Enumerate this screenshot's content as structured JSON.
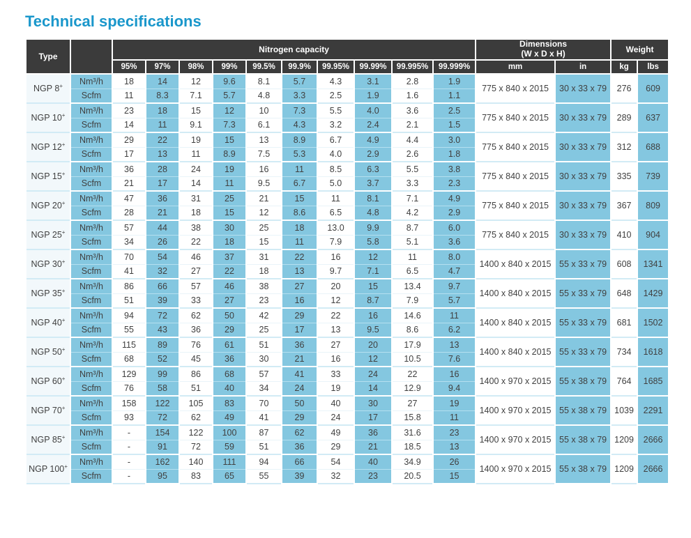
{
  "page_title": "Technical specifications",
  "colors": {
    "title_blue": "#1a97cb",
    "header_dark": "#3b3b3b",
    "header_text": "#ffffff",
    "cell_blue": "#84c7e0",
    "cell_white": "#ffffff",
    "type_column_bg": "#f2f8fb",
    "group_divider": "#d2ebf5",
    "body_text": "#404040"
  },
  "table": {
    "header": {
      "type_label": "Type",
      "capacity_label": "Nitrogen capacity",
      "capacity_columns": [
        "95%",
        "97%",
        "98%",
        "99%",
        "99.5%",
        "99.9%",
        "99.95%",
        "99.99%",
        "99.995%",
        "99.999%"
      ],
      "dimensions_label_line1": "Dimensions",
      "dimensions_label_line2": "(W x D x H)",
      "dimensions_columns": [
        "mm",
        "in"
      ],
      "weight_label": "Weight",
      "weight_columns": [
        "kg",
        "lbs"
      ]
    },
    "unit_labels": [
      "Nm³/h",
      "Scfm"
    ],
    "rows": [
      {
        "type": "NGP 8",
        "sup": "+",
        "nm3h": [
          "18",
          "14",
          "12",
          "9.6",
          "8.1",
          "5.7",
          "4.3",
          "3.1",
          "2.8",
          "1.9"
        ],
        "scfm": [
          "11",
          "8.3",
          "7.1",
          "5.7",
          "4.8",
          "3.3",
          "2.5",
          "1.9",
          "1.6",
          "1.1"
        ],
        "dim_mm": "775 x 840 x 2015",
        "dim_in": "30 x 33 x 79",
        "kg": "276",
        "lbs": "609"
      },
      {
        "type": "NGP 10",
        "sup": "+",
        "nm3h": [
          "23",
          "18",
          "15",
          "12",
          "10",
          "7.3",
          "5.5",
          "4.0",
          "3.6",
          "2.5"
        ],
        "scfm": [
          "14",
          "11",
          "9.1",
          "7.3",
          "6.1",
          "4.3",
          "3.2",
          "2.4",
          "2.1",
          "1.5"
        ],
        "dim_mm": "775 x 840 x 2015",
        "dim_in": "30 x 33 x 79",
        "kg": "289",
        "lbs": "637"
      },
      {
        "type": "NGP 12",
        "sup": "+",
        "nm3h": [
          "29",
          "22",
          "19",
          "15",
          "13",
          "8.9",
          "6.7",
          "4.9",
          "4.4",
          "3.0"
        ],
        "scfm": [
          "17",
          "13",
          "11",
          "8.9",
          "7.5",
          "5.3",
          "4.0",
          "2.9",
          "2.6",
          "1.8"
        ],
        "dim_mm": "775 x 840 x 2015",
        "dim_in": "30 x 33 x 79",
        "kg": "312",
        "lbs": "688"
      },
      {
        "type": "NGP 15",
        "sup": "+",
        "nm3h": [
          "36",
          "28",
          "24",
          "19",
          "16",
          "11",
          "8.5",
          "6.3",
          "5.5",
          "3.8"
        ],
        "scfm": [
          "21",
          "17",
          "14",
          "11",
          "9.5",
          "6.7",
          "5.0",
          "3.7",
          "3.3",
          "2.3"
        ],
        "dim_mm": "775 x 840 x 2015",
        "dim_in": "30 x 33 x 79",
        "kg": "335",
        "lbs": "739"
      },
      {
        "type": "NGP 20",
        "sup": "+",
        "nm3h": [
          "47",
          "36",
          "31",
          "25",
          "21",
          "15",
          "11",
          "8.1",
          "7.1",
          "4.9"
        ],
        "scfm": [
          "28",
          "21",
          "18",
          "15",
          "12",
          "8.6",
          "6.5",
          "4.8",
          "4.2",
          "2.9"
        ],
        "dim_mm": "775 x 840 x 2015",
        "dim_in": "30 x 33 x 79",
        "kg": "367",
        "lbs": "809"
      },
      {
        "type": "NGP 25",
        "sup": "+",
        "nm3h": [
          "57",
          "44",
          "38",
          "30",
          "25",
          "18",
          "13.0",
          "9.9",
          "8.7",
          "6.0"
        ],
        "scfm": [
          "34",
          "26",
          "22",
          "18",
          "15",
          "11",
          "7.9",
          "5.8",
          "5.1",
          "3.6"
        ],
        "dim_mm": "775 x 840 x 2015",
        "dim_in": "30 x 33 x 79",
        "kg": "410",
        "lbs": "904"
      },
      {
        "type": "NGP 30",
        "sup": "+",
        "nm3h": [
          "70",
          "54",
          "46",
          "37",
          "31",
          "22",
          "16",
          "12",
          "11",
          "8.0"
        ],
        "scfm": [
          "41",
          "32",
          "27",
          "22",
          "18",
          "13",
          "9.7",
          "7.1",
          "6.5",
          "4.7"
        ],
        "dim_mm": "1400 x 840 x 2015",
        "dim_in": "55 x 33 x 79",
        "kg": "608",
        "lbs": "1341"
      },
      {
        "type": "NGP 35",
        "sup": "+",
        "nm3h": [
          "86",
          "66",
          "57",
          "46",
          "38",
          "27",
          "20",
          "15",
          "13.4",
          "9.7"
        ],
        "scfm": [
          "51",
          "39",
          "33",
          "27",
          "23",
          "16",
          "12",
          "8.7",
          "7.9",
          "5.7"
        ],
        "dim_mm": "1400 x 840 x 2015",
        "dim_in": "55 x 33 x 79",
        "kg": "648",
        "lbs": "1429"
      },
      {
        "type": "NGP 40",
        "sup": "+",
        "nm3h": [
          "94",
          "72",
          "62",
          "50",
          "42",
          "29",
          "22",
          "16",
          "14.6",
          "11"
        ],
        "scfm": [
          "55",
          "43",
          "36",
          "29",
          "25",
          "17",
          "13",
          "9.5",
          "8.6",
          "6.2"
        ],
        "dim_mm": "1400 x 840 x 2015",
        "dim_in": "55 x 33 x 79",
        "kg": "681",
        "lbs": "1502"
      },
      {
        "type": "NGP 50",
        "sup": "+",
        "nm3h": [
          "115",
          "89",
          "76",
          "61",
          "51",
          "36",
          "27",
          "20",
          "17.9",
          "13"
        ],
        "scfm": [
          "68",
          "52",
          "45",
          "36",
          "30",
          "21",
          "16",
          "12",
          "10.5",
          "7.6"
        ],
        "dim_mm": "1400 x 840 x 2015",
        "dim_in": "55 x 33 x 79",
        "kg": "734",
        "lbs": "1618"
      },
      {
        "type": "NGP 60",
        "sup": "+",
        "nm3h": [
          "129",
          "99",
          "86",
          "68",
          "57",
          "41",
          "33",
          "24",
          "22",
          "16"
        ],
        "scfm": [
          "76",
          "58",
          "51",
          "40",
          "34",
          "24",
          "19",
          "14",
          "12.9",
          "9.4"
        ],
        "dim_mm": "1400 x 970 x 2015",
        "dim_in": "55 x 38 x 79",
        "kg": "764",
        "lbs": "1685"
      },
      {
        "type": "NGP 70",
        "sup": "+",
        "nm3h": [
          "158",
          "122",
          "105",
          "83",
          "70",
          "50",
          "40",
          "30",
          "27",
          "19"
        ],
        "scfm": [
          "93",
          "72",
          "62",
          "49",
          "41",
          "29",
          "24",
          "17",
          "15.8",
          "11"
        ],
        "dim_mm": "1400 x 970 x 2015",
        "dim_in": "55 x 38 x 79",
        "kg": "1039",
        "lbs": "2291"
      },
      {
        "type": "NGP 85",
        "sup": "+",
        "nm3h": [
          "-",
          "154",
          "122",
          "100",
          "87",
          "62",
          "49",
          "36",
          "31.6",
          "23"
        ],
        "scfm": [
          "-",
          "91",
          "72",
          "59",
          "51",
          "36",
          "29",
          "21",
          "18.5",
          "13"
        ],
        "dim_mm": "1400 x 970 x 2015",
        "dim_in": "55 x 38 x 79",
        "kg": "1209",
        "lbs": "2666"
      },
      {
        "type": "NGP 100",
        "sup": "+",
        "nm3h": [
          "-",
          "162",
          "140",
          "111",
          "94",
          "66",
          "54",
          "40",
          "34.9",
          "26"
        ],
        "scfm": [
          "-",
          "95",
          "83",
          "65",
          "55",
          "39",
          "32",
          "23",
          "20.5",
          "15"
        ],
        "dim_mm": "1400 x 970 x 2015",
        "dim_in": "55 x 38 x 79",
        "kg": "1209",
        "lbs": "2666"
      }
    ]
  }
}
